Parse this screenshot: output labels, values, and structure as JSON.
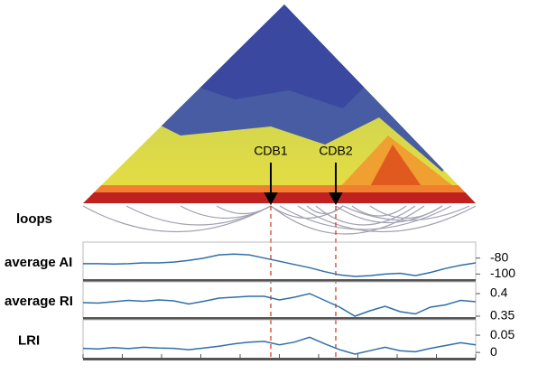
{
  "heatmap": {
    "annotations": [
      "CDB1",
      "CDB2"
    ]
  },
  "loops": {
    "label": "loops"
  },
  "chart_data": [
    {
      "type": "line",
      "ylabel": "average AI",
      "color": "#2e6fa8",
      "ylim": [
        -107.5,
        -60
      ],
      "yticks": [
        -80,
        -100
      ],
      "values": [
        -87,
        -87,
        -87.5,
        -87,
        -86,
        -86,
        -85,
        -83,
        -80,
        -76,
        -75,
        -76,
        -80,
        -84,
        -88,
        -92,
        -97,
        -101,
        -103,
        -102,
        -100,
        -99,
        -102,
        -98,
        -93,
        -89,
        -86
      ]
    },
    {
      "type": "line",
      "ylabel": "average RI",
      "color": "#2e6fa8",
      "ylim": [
        0.346,
        0.426
      ],
      "yticks": [
        0.4,
        0.35
      ],
      "values": [
        0.38,
        0.379,
        0.382,
        0.385,
        0.383,
        0.386,
        0.384,
        0.377,
        0.383,
        0.39,
        0.392,
        0.394,
        0.394,
        0.386,
        0.392,
        0.4,
        0.385,
        0.37,
        0.35,
        0.362,
        0.372,
        0.36,
        0.355,
        0.37,
        0.375,
        0.385,
        0.382
      ]
    },
    {
      "type": "line",
      "ylabel": "LRI",
      "color": "#2e6fa8",
      "ylim": [
        -0.018,
        0.0947
      ],
      "yticks": [
        0.05,
        0
      ],
      "values": [
        0.012,
        0.01,
        0.014,
        0.011,
        0.015,
        0.013,
        0.012,
        0.008,
        0.013,
        0.018,
        0.025,
        0.03,
        0.032,
        0.022,
        0.03,
        0.044,
        0.025,
        0.008,
        -0.005,
        0.005,
        0.015,
        0.005,
        0.002,
        0.012,
        0.02,
        0.028,
        0.022
      ]
    }
  ]
}
